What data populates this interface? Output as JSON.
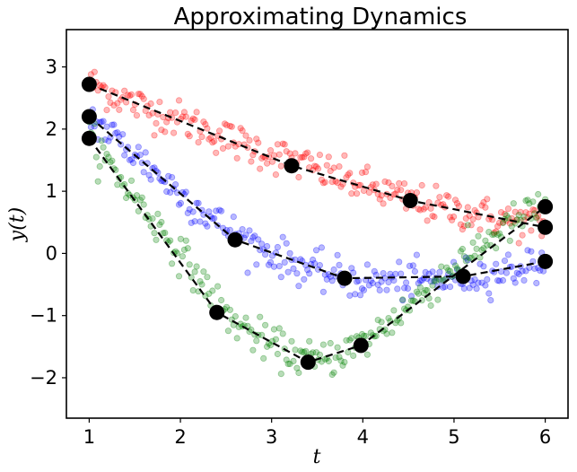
{
  "chart_data": {
    "type": "scatter",
    "title": "Approximating Dynamics",
    "xlabel": "t",
    "ylabel": "y(t)",
    "xlim": [
      0.75,
      6.25
    ],
    "ylim": [
      -2.65,
      3.6
    ],
    "xticks": [
      1,
      2,
      3,
      4,
      5,
      6
    ],
    "yticks": [
      -2,
      -1,
      0,
      1,
      2,
      3
    ],
    "xtick_labels": [
      "1",
      "2",
      "3",
      "4",
      "5",
      "6"
    ],
    "ytick_labels": [
      "−2",
      "−1",
      "0",
      "1",
      "2",
      "3"
    ],
    "grid": false,
    "series": [
      {
        "color": "#ff0000",
        "scatter_trend_x": [
          1.0,
          1.5,
          2.0,
          2.5,
          3.0,
          3.5,
          4.0,
          4.5,
          5.0,
          5.5,
          6.0
        ],
        "scatter_trend_y": [
          2.75,
          2.4,
          2.15,
          1.85,
          1.6,
          1.35,
          1.1,
          0.85,
          0.7,
          0.55,
          0.45
        ],
        "scatter_noise": 0.15,
        "key_points": {
          "x": [
            1.0,
            3.22,
            4.52,
            6.0
          ],
          "y": [
            2.72,
            1.41,
            0.85,
            0.42
          ]
        }
      },
      {
        "color": "#0000ff",
        "scatter_trend_x": [
          1.0,
          1.5,
          2.0,
          2.5,
          3.0,
          3.5,
          4.0,
          4.5,
          5.0,
          5.5,
          6.0
        ],
        "scatter_trend_y": [
          2.2,
          1.6,
          0.95,
          0.4,
          0.0,
          -0.3,
          -0.45,
          -0.45,
          -0.4,
          -0.3,
          -0.15
        ],
        "scatter_noise": 0.15,
        "key_points": {
          "x": [
            1.0,
            2.6,
            3.8,
            5.1,
            6.0
          ],
          "y": [
            2.2,
            0.22,
            -0.4,
            -0.37,
            -0.13
          ]
        }
      },
      {
        "color": "#008000",
        "scatter_trend_x": [
          1.0,
          1.5,
          2.0,
          2.5,
          3.0,
          3.5,
          4.0,
          4.5,
          5.0,
          5.5,
          6.0
        ],
        "scatter_trend_y": [
          1.85,
          0.9,
          0.0,
          -1.0,
          -1.5,
          -1.75,
          -1.45,
          -0.85,
          -0.2,
          0.35,
          0.8
        ],
        "scatter_noise": 0.15,
        "key_points": {
          "x": [
            1.0,
            2.4,
            3.4,
            3.98,
            6.0
          ],
          "y": [
            1.85,
            -0.95,
            -1.75,
            -1.48,
            0.75
          ]
        }
      }
    ]
  }
}
